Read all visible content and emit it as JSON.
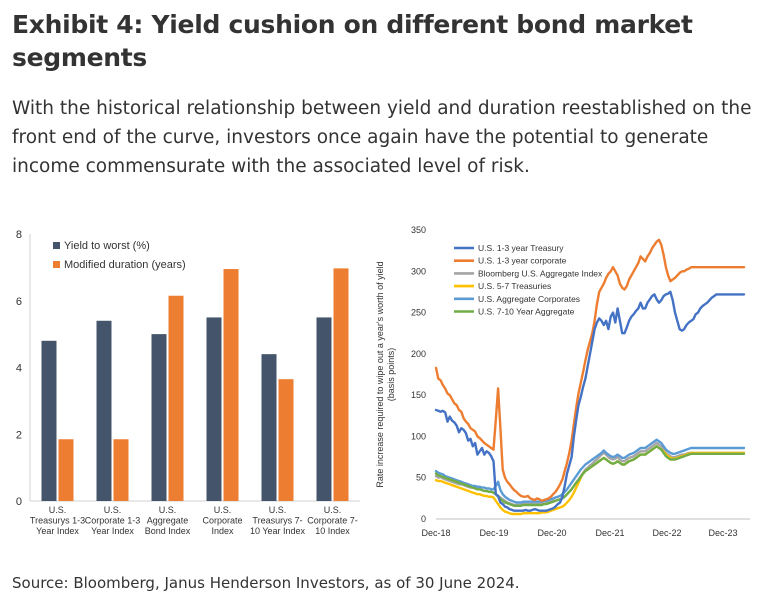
{
  "header": {
    "title": "Exhibit 4: Yield cushion on different bond market segments",
    "subtitle": "With the historical relationship between yield and duration reestablished on the front end of the curve, investors once again have the potential to generate income commensurate with the associated level of risk."
  },
  "footer": {
    "source": "Source: Bloomberg, Janus Henderson Investors, as of 30 June 2024."
  },
  "colors": {
    "yield": "#44546a",
    "duration": "#ed7d31"
  },
  "chart_data": [
    {
      "type": "bar",
      "categories": [
        [
          "U.S.",
          "Treasurys 1-3",
          "Year Index"
        ],
        [
          "U.S.",
          "Corporate 1-3",
          "Year Index"
        ],
        [
          "U.S.",
          "Aggregate",
          "Bond Index"
        ],
        [
          "U.S.",
          "Corporate",
          "Index"
        ],
        [
          "U.S.",
          "Treasurys 7-",
          "10 Year Index"
        ],
        [
          "U.S.",
          "Corporate 7-",
          "10  Index"
        ]
      ],
      "series": [
        {
          "name": "Yield to worst (%)",
          "color": "#44546a",
          "values": [
            4.8,
            5.4,
            5.0,
            5.5,
            4.4,
            5.5
          ]
        },
        {
          "name": "Modified duration (years)",
          "color": "#ed7d31",
          "values": [
            1.85,
            1.85,
            6.15,
            6.95,
            3.65,
            6.97
          ]
        }
      ],
      "ylim": [
        0,
        8
      ],
      "yticks": [
        0,
        2,
        4,
        6,
        8
      ],
      "legend_position": "top-left",
      "grid": false
    },
    {
      "type": "line",
      "ylabel": "Rate increase required to wipe out a year's worth of yield (basis points)",
      "ylim": [
        0,
        350
      ],
      "yticks": [
        0,
        50,
        100,
        150,
        200,
        250,
        300,
        350
      ],
      "x_tick_labels": [
        "Dec-18",
        "Dec-19",
        "Dec-20",
        "Dec-21",
        "Dec-22",
        "Dec-23"
      ],
      "x": [
        0,
        0.5,
        1,
        1.5,
        2,
        2.5,
        3,
        3.5,
        4,
        4.5,
        5,
        5.5,
        6,
        6.5,
        7,
        7.5,
        8,
        8.5,
        9,
        9.5,
        10,
        10.5,
        11,
        11.5,
        12,
        12.5,
        13,
        13.5,
        14,
        14.5,
        15,
        15.5,
        16,
        16.5,
        17,
        17.5,
        18,
        18.5,
        19,
        19.5,
        20,
        20.5,
        21,
        21.5,
        22,
        22.5,
        23,
        23.5,
        24,
        24.5,
        25,
        25.5,
        26,
        26.5,
        27,
        27.5,
        28,
        28.5,
        29,
        29.5,
        30,
        30.5,
        31,
        31.5,
        32,
        32.5,
        33,
        33.5,
        34,
        34.5,
        35,
        35.5,
        36,
        36.5,
        37,
        37.5,
        38,
        38.5,
        39,
        39.5,
        40,
        40.5,
        41,
        41.5,
        42,
        42.5,
        43,
        43.5,
        44,
        44.5,
        45,
        45.5,
        46,
        46.5,
        47,
        47.5,
        48,
        48.5,
        49,
        49.5,
        50,
        50.5,
        51,
        51.5,
        52,
        52.5,
        53,
        53.5,
        54,
        54.5,
        55,
        55.5,
        56,
        56.5,
        57,
        57.5,
        58,
        58.5,
        59,
        59.5,
        60,
        60.5,
        61,
        61.5,
        62,
        62.5,
        63,
        63.5,
        64,
        64.5,
        65,
        65.5,
        66,
        66.5,
        67
      ],
      "series": [
        {
          "name": "U.S. 1-3 year Treasury",
          "color": "#4472c4",
          "values": [
            132,
            131,
            130,
            131,
            129,
            118,
            124,
            119,
            117,
            113,
            105,
            110,
            108,
            104,
            95,
            97,
            88,
            92,
            78,
            82,
            86,
            78,
            82,
            80,
            76,
            70,
            30,
            28,
            20,
            18,
            15,
            14,
            12,
            11,
            10,
            10,
            10,
            10,
            10,
            11,
            10,
            10,
            11,
            12,
            11,
            10,
            10,
            10,
            10,
            11,
            12,
            13,
            15,
            18,
            20,
            27,
            40,
            55,
            65,
            75,
            100,
            120,
            138,
            148,
            160,
            170,
            185,
            200,
            215,
            230,
            238,
            243,
            240,
            235,
            240,
            230,
            245,
            250,
            238,
            255,
            240,
            225,
            225,
            232,
            240,
            245,
            248,
            252,
            255,
            262,
            255,
            255,
            262,
            266,
            270,
            272,
            266,
            262,
            265,
            270,
            272,
            273,
            275,
            265,
            250,
            240,
            230,
            228,
            230,
            235,
            238,
            240,
            242,
            248,
            250,
            255,
            258,
            260,
            262,
            265,
            268,
            270,
            272,
            272,
            272,
            272,
            272,
            272,
            272,
            272,
            272,
            272,
            272,
            272,
            272
          ]
        },
        {
          "name": "U.S. 1-3 year corporate",
          "color": "#ed7d31",
          "values": [
            183,
            170,
            168,
            162,
            158,
            152,
            150,
            145,
            140,
            138,
            132,
            130,
            122,
            118,
            115,
            110,
            108,
            106,
            100,
            98,
            95,
            92,
            90,
            88,
            86,
            84,
            120,
            158,
            110,
            60,
            50,
            45,
            42,
            38,
            35,
            33,
            30,
            28,
            27,
            27,
            28,
            25,
            24,
            23,
            25,
            24,
            22,
            23,
            24,
            25,
            27,
            30,
            33,
            37,
            42,
            48,
            58,
            68,
            80,
            95,
            115,
            135,
            152,
            165,
            178,
            192,
            205,
            215,
            225,
            240,
            260,
            275,
            280,
            285,
            292,
            297,
            300,
            305,
            300,
            295,
            285,
            280,
            278,
            282,
            290,
            295,
            300,
            305,
            310,
            318,
            315,
            312,
            318,
            322,
            328,
            332,
            336,
            338,
            332,
            320,
            305,
            295,
            288,
            290,
            292,
            295,
            298,
            300,
            300,
            302,
            303,
            305,
            305,
            305,
            305,
            305,
            305,
            305,
            305,
            305,
            305,
            305,
            305,
            305,
            305,
            305,
            305,
            305,
            305,
            305,
            305,
            305,
            305,
            305,
            305
          ]
        },
        {
          "name": "Bloomberg U.S. Aggregate Index",
          "color": "#a5a5a5",
          "values": [
            52,
            50,
            51,
            49,
            48,
            47,
            46,
            45,
            44,
            43,
            42,
            42,
            41,
            40,
            39,
            38,
            38,
            37,
            36,
            36,
            35,
            34,
            34,
            33,
            33,
            32,
            30,
            28,
            26,
            24,
            22,
            20,
            19,
            18,
            17,
            17,
            17,
            17,
            18,
            18,
            18,
            18,
            18,
            18,
            18,
            18,
            18,
            19,
            19,
            20,
            21,
            22,
            22,
            23,
            24,
            25,
            27,
            30,
            33,
            36,
            40,
            44,
            48,
            52,
            56,
            60,
            62,
            65,
            67,
            70,
            72,
            75,
            78,
            80,
            78,
            75,
            73,
            72,
            73,
            75,
            72,
            70,
            70,
            72,
            74,
            75,
            76,
            78,
            80,
            82,
            82,
            82,
            84,
            86,
            88,
            90,
            92,
            90,
            88,
            85,
            80,
            78,
            76,
            75,
            75,
            76,
            77,
            78,
            78,
            79,
            80,
            80,
            80,
            80,
            80,
            80,
            80,
            80,
            80,
            80,
            80,
            80,
            80,
            80,
            80,
            80,
            80,
            80,
            80,
            80,
            80,
            80,
            80,
            80,
            80
          ]
        },
        {
          "name": "U.S. 5-7 Treasuries",
          "color": "#ffc000",
          "values": [
            47,
            46,
            46,
            45,
            44,
            43,
            42,
            41,
            40,
            39,
            38,
            37,
            36,
            35,
            34,
            33,
            32,
            31,
            30,
            30,
            29,
            28,
            28,
            27,
            27,
            26,
            22,
            18,
            14,
            11,
            9,
            8,
            7,
            6,
            6,
            6,
            6,
            6,
            7,
            7,
            7,
            7,
            7,
            7,
            7,
            7,
            8,
            8,
            8,
            9,
            10,
            11,
            12,
            13,
            14,
            15,
            17,
            20,
            23,
            27,
            32,
            38,
            44,
            50,
            55,
            58,
            60,
            62,
            64,
            66,
            68,
            70,
            72,
            74,
            72,
            70,
            68,
            67,
            68,
            70,
            68,
            66,
            66,
            68,
            70,
            71,
            72,
            74,
            76,
            78,
            78,
            78,
            80,
            82,
            84,
            86,
            88,
            86,
            84,
            82,
            78,
            76,
            74,
            73,
            73,
            74,
            75,
            76,
            77,
            78,
            79,
            80,
            80,
            80,
            80,
            80,
            80,
            80,
            80,
            80,
            80,
            80,
            80,
            80,
            80,
            80,
            80,
            80,
            80,
            80,
            80,
            80,
            80,
            80,
            80
          ]
        },
        {
          "name": "U.S. Aggregate Corporates",
          "color": "#5b9bd5",
          "values": [
            58,
            56,
            55,
            54,
            52,
            51,
            50,
            49,
            48,
            47,
            46,
            45,
            44,
            43,
            42,
            41,
            40,
            40,
            39,
            39,
            38,
            38,
            37,
            37,
            36,
            36,
            40,
            45,
            35,
            30,
            27,
            25,
            23,
            22,
            21,
            20,
            20,
            20,
            21,
            21,
            21,
            21,
            21,
            21,
            21,
            21,
            21,
            22,
            22,
            23,
            24,
            25,
            26,
            27,
            28,
            30,
            33,
            36,
            40,
            44,
            48,
            52,
            56,
            60,
            63,
            66,
            68,
            70,
            72,
            74,
            76,
            78,
            80,
            83,
            80,
            78,
            76,
            75,
            76,
            78,
            76,
            74,
            74,
            76,
            78,
            79,
            80,
            82,
            84,
            86,
            86,
            86,
            88,
            90,
            92,
            94,
            96,
            94,
            92,
            88,
            84,
            82,
            80,
            79,
            79,
            80,
            81,
            82,
            83,
            84,
            85,
            86,
            86,
            86,
            86,
            86,
            86,
            86,
            86,
            86,
            86,
            86,
            86,
            86,
            86,
            86,
            86,
            86,
            86,
            86,
            86,
            86,
            86,
            86,
            86
          ]
        },
        {
          "name": "U.S. 7-10 Year Aggregate",
          "color": "#70ad47",
          "values": [
            55,
            53,
            52,
            51,
            50,
            49,
            48,
            47,
            46,
            45,
            44,
            43,
            42,
            41,
            40,
            39,
            38,
            37,
            36,
            36,
            35,
            34,
            34,
            33,
            33,
            32,
            30,
            27,
            24,
            22,
            20,
            19,
            18,
            17,
            16,
            16,
            16,
            16,
            17,
            17,
            17,
            17,
            17,
            17,
            17,
            17,
            17,
            18,
            18,
            19,
            20,
            21,
            22,
            23,
            24,
            25,
            27,
            30,
            33,
            36,
            40,
            44,
            47,
            51,
            55,
            58,
            60,
            62,
            64,
            66,
            68,
            70,
            72,
            74,
            72,
            70,
            68,
            67,
            68,
            70,
            68,
            66,
            66,
            68,
            70,
            71,
            72,
            74,
            76,
            78,
            78,
            78,
            80,
            82,
            84,
            86,
            88,
            86,
            84,
            80,
            76,
            74,
            72,
            72,
            72,
            73,
            74,
            75,
            76,
            77,
            78,
            79,
            79,
            79,
            79,
            79,
            79,
            79,
            79,
            79,
            79,
            79,
            79,
            79,
            79,
            79,
            79,
            79,
            79,
            79,
            79,
            79,
            79,
            79,
            79
          ]
        }
      ],
      "legend_position": "top-left",
      "grid": false
    }
  ]
}
